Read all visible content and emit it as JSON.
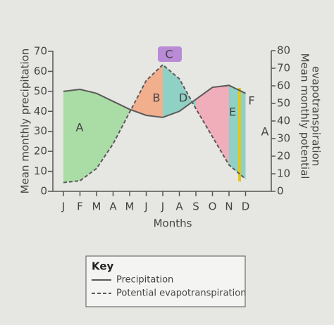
{
  "chart_data": {
    "type": "line",
    "x_label": "Months",
    "y_label": "Mean monthly precipitation",
    "y2_label": [
      "Mean monthly potential",
      "evapotranspiration"
    ],
    "categories": [
      "J",
      "F",
      "M",
      "A",
      "M",
      "J",
      "J",
      "A",
      "S",
      "O",
      "N",
      "D"
    ],
    "series": [
      {
        "name": "Precipitation",
        "color": "#5a5a5a",
        "style": "solid",
        "values": [
          50,
          51,
          49,
          45,
          41,
          38,
          37,
          40,
          46,
          52,
          53,
          49
        ]
      },
      {
        "name": "Potential evapotranspiration",
        "color": "#5a5a5a",
        "style": "dashed",
        "axis": "y2",
        "values": [
          5,
          6,
          13,
          27,
          45,
          63,
          72,
          64,
          47,
          31,
          15,
          7
        ]
      }
    ],
    "ylim": [
      0,
      70
    ],
    "yticks": [
      0,
      10,
      20,
      30,
      40,
      50,
      60,
      70
    ],
    "y2lim": [
      0,
      80
    ],
    "y2ticks": [
      0,
      10,
      20,
      30,
      40,
      50,
      60,
      70,
      80
    ],
    "annotations": [
      "A",
      "B",
      "C",
      "D",
      "E",
      "F",
      "A"
    ],
    "legend_title": "Key"
  }
}
